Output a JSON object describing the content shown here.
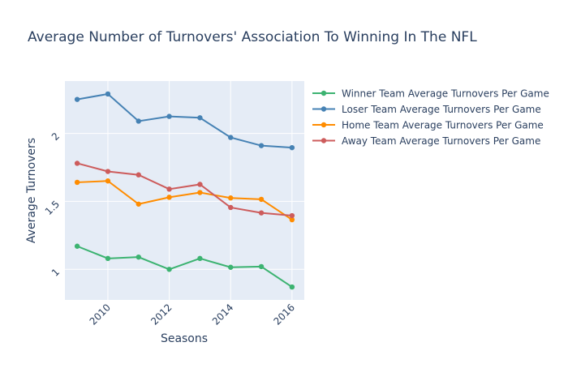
{
  "chart_data": {
    "type": "line",
    "title": "Average Number of Turnovers' Association To Winning In The NFL",
    "xlabel": "Seasons",
    "ylabel": "Average Turnovers",
    "x": [
      2009,
      2010,
      2011,
      2012,
      2013,
      2014,
      2015,
      2016
    ],
    "xlim": [
      2008.6,
      2016.4
    ],
    "ylim": [
      0.775,
      2.385
    ],
    "x_ticks": [
      2010,
      2012,
      2014,
      2016
    ],
    "x_tick_labels": [
      "2010",
      "2012",
      "2014",
      "2016"
    ],
    "y_ticks": [
      1,
      1.5,
      2
    ],
    "y_tick_labels": [
      "1",
      "1.5",
      "2"
    ],
    "grid": true,
    "legend_position": "right",
    "series": [
      {
        "name": "Winner Team Average Turnovers Per Game",
        "color": "#3cb371",
        "values": [
          1.17,
          1.08,
          1.09,
          1.0,
          1.08,
          1.015,
          1.02,
          0.87
        ]
      },
      {
        "name": "Loser Team Average Turnovers Per Game",
        "color": "#4682b4",
        "values": [
          2.25,
          2.29,
          2.09,
          2.125,
          2.115,
          1.97,
          1.91,
          1.895
        ]
      },
      {
        "name": "Home Team Average Turnovers Per Game",
        "color": "#ff8c00",
        "values": [
          1.64,
          1.65,
          1.48,
          1.53,
          1.565,
          1.525,
          1.515,
          1.365
        ]
      },
      {
        "name": "Away Team Average Turnovers Per Game",
        "color": "#cd5c5c",
        "values": [
          1.78,
          1.72,
          1.695,
          1.59,
          1.625,
          1.455,
          1.415,
          1.395
        ]
      }
    ]
  }
}
